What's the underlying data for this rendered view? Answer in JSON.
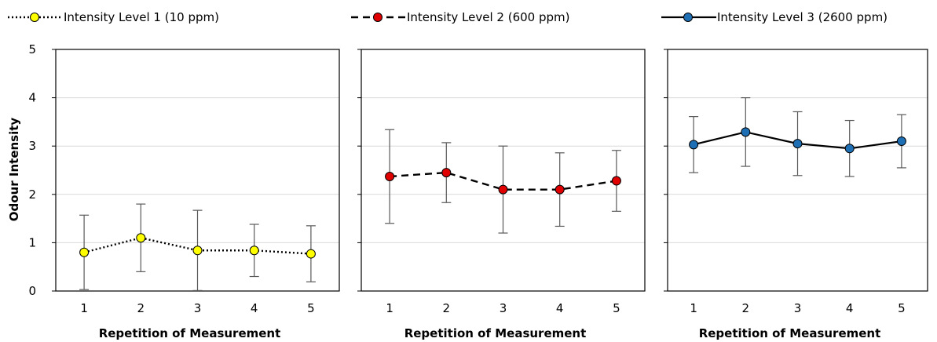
{
  "chart_data": {
    "type": "line",
    "ylabel": "Odour Intensity",
    "xlabel": "Repetition of Measurement",
    "ylim": [
      0,
      5
    ],
    "yticks": [
      "0",
      "1",
      "2",
      "3",
      "4",
      "5"
    ],
    "x": [
      "1",
      "2",
      "3",
      "4",
      "5"
    ],
    "grid": "horizontal",
    "legend_position": "top",
    "series": [
      {
        "name": "Intensity Level 1 (10 ppm)",
        "color": "#ffff00",
        "line_style": "dotted",
        "values": [
          0.8,
          1.1,
          0.84,
          0.84,
          0.77
        ],
        "error": [
          0.77,
          0.7,
          0.83,
          0.54,
          0.58
        ]
      },
      {
        "name": "Intensity Level 2 (600 ppm)",
        "color": "#e00000",
        "line_style": "dashed",
        "values": [
          2.37,
          2.45,
          2.1,
          2.1,
          2.28
        ],
        "error": [
          0.97,
          0.62,
          0.9,
          0.76,
          0.63
        ]
      },
      {
        "name": "Intensity Level 3 (2600 ppm)",
        "color": "#1f6fb4",
        "line_style": "solid",
        "values": [
          3.03,
          3.29,
          3.05,
          2.95,
          3.1
        ],
        "error": [
          0.58,
          0.71,
          0.66,
          0.58,
          0.55
        ]
      }
    ]
  }
}
